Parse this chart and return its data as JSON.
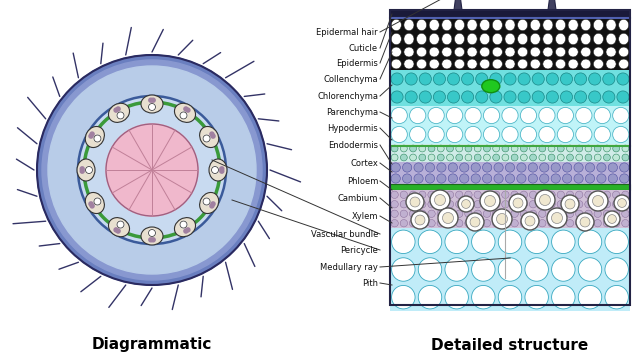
{
  "left_label": "Diagrammatic",
  "right_label": "Detailed structure",
  "bg_color": "#ffffff",
  "labels": [
    "Epidermal hair",
    "Cuticle",
    "Epidermis",
    "Collenchyma",
    "Chlorenchyma",
    "Parenchyma",
    "Hypodermis",
    "Endodermis",
    "Cortex",
    "Phloem",
    "Cambium",
    "Xylem",
    "Vascular bundle",
    "Pericycle",
    "Medullary ray",
    "Pith"
  ]
}
